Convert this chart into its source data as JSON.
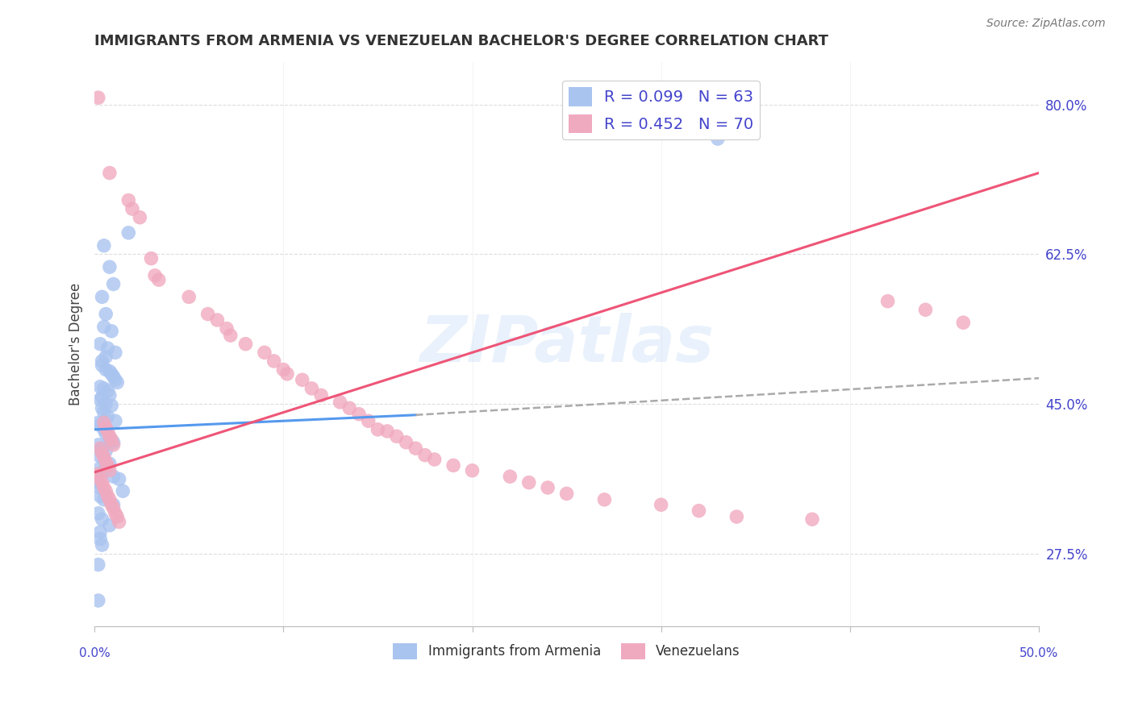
{
  "title": "IMMIGRANTS FROM ARMENIA VS VENEZUELAN BACHELOR'S DEGREE CORRELATION CHART",
  "source": "Source: ZipAtlas.com",
  "ylabel": "Bachelor's Degree",
  "ytick_labels": [
    "27.5%",
    "45.0%",
    "62.5%",
    "80.0%"
  ],
  "ytick_values": [
    0.275,
    0.45,
    0.625,
    0.8
  ],
  "legend_entries": [
    {
      "label": "R = 0.099   N = 63",
      "color": "#aac4f0"
    },
    {
      "label": "R = 0.452   N = 70",
      "color": "#f0aac0"
    }
  ],
  "legend_bottom": [
    "Immigrants from Armenia",
    "Venezuelans"
  ],
  "armenia_color": "#aac4f0",
  "venezuela_color": "#f0aac0",
  "armenia_scatter": [
    [
      0.005,
      0.635
    ],
    [
      0.018,
      0.65
    ],
    [
      0.008,
      0.61
    ],
    [
      0.01,
      0.59
    ],
    [
      0.004,
      0.575
    ],
    [
      0.006,
      0.555
    ],
    [
      0.005,
      0.54
    ],
    [
      0.009,
      0.535
    ],
    [
      0.003,
      0.52
    ],
    [
      0.007,
      0.515
    ],
    [
      0.011,
      0.51
    ],
    [
      0.006,
      0.505
    ],
    [
      0.004,
      0.5
    ],
    [
      0.004,
      0.495
    ],
    [
      0.006,
      0.49
    ],
    [
      0.008,
      0.488
    ],
    [
      0.009,
      0.485
    ],
    [
      0.01,
      0.482
    ],
    [
      0.011,
      0.478
    ],
    [
      0.012,
      0.475
    ],
    [
      0.003,
      0.47
    ],
    [
      0.005,
      0.468
    ],
    [
      0.007,
      0.465
    ],
    [
      0.008,
      0.46
    ],
    [
      0.004,
      0.458
    ],
    [
      0.003,
      0.455
    ],
    [
      0.006,
      0.45
    ],
    [
      0.009,
      0.448
    ],
    [
      0.004,
      0.445
    ],
    [
      0.005,
      0.44
    ],
    [
      0.007,
      0.435
    ],
    [
      0.011,
      0.43
    ],
    [
      0.002,
      0.428
    ],
    [
      0.003,
      0.425
    ],
    [
      0.005,
      0.42
    ],
    [
      0.006,
      0.415
    ],
    [
      0.008,
      0.41
    ],
    [
      0.01,
      0.405
    ],
    [
      0.002,
      0.402
    ],
    [
      0.004,
      0.398
    ],
    [
      0.006,
      0.395
    ],
    [
      0.002,
      0.39
    ],
    [
      0.005,
      0.385
    ],
    [
      0.008,
      0.38
    ],
    [
      0.003,
      0.375
    ],
    [
      0.004,
      0.37
    ],
    [
      0.01,
      0.365
    ],
    [
      0.013,
      0.362
    ],
    [
      0.002,
      0.358
    ],
    [
      0.003,
      0.352
    ],
    [
      0.015,
      0.348
    ],
    [
      0.003,
      0.342
    ],
    [
      0.005,
      0.338
    ],
    [
      0.01,
      0.332
    ],
    [
      0.002,
      0.322
    ],
    [
      0.004,
      0.315
    ],
    [
      0.008,
      0.308
    ],
    [
      0.003,
      0.3
    ],
    [
      0.003,
      0.292
    ],
    [
      0.004,
      0.285
    ],
    [
      0.002,
      0.262
    ],
    [
      0.002,
      0.22
    ],
    [
      0.33,
      0.76
    ]
  ],
  "venezuela_scatter": [
    [
      0.002,
      0.808
    ],
    [
      0.008,
      0.72
    ],
    [
      0.018,
      0.688
    ],
    [
      0.02,
      0.678
    ],
    [
      0.024,
      0.668
    ],
    [
      0.03,
      0.62
    ],
    [
      0.032,
      0.6
    ],
    [
      0.034,
      0.595
    ],
    [
      0.05,
      0.575
    ],
    [
      0.06,
      0.555
    ],
    [
      0.065,
      0.548
    ],
    [
      0.07,
      0.538
    ],
    [
      0.072,
      0.53
    ],
    [
      0.08,
      0.52
    ],
    [
      0.09,
      0.51
    ],
    [
      0.095,
      0.5
    ],
    [
      0.1,
      0.49
    ],
    [
      0.102,
      0.485
    ],
    [
      0.11,
      0.478
    ],
    [
      0.115,
      0.468
    ],
    [
      0.12,
      0.46
    ],
    [
      0.13,
      0.452
    ],
    [
      0.135,
      0.445
    ],
    [
      0.14,
      0.438
    ],
    [
      0.145,
      0.43
    ],
    [
      0.15,
      0.42
    ],
    [
      0.155,
      0.418
    ],
    [
      0.16,
      0.412
    ],
    [
      0.165,
      0.405
    ],
    [
      0.17,
      0.398
    ],
    [
      0.175,
      0.39
    ],
    [
      0.18,
      0.385
    ],
    [
      0.005,
      0.428
    ],
    [
      0.006,
      0.422
    ],
    [
      0.007,
      0.418
    ],
    [
      0.008,
      0.412
    ],
    [
      0.009,
      0.408
    ],
    [
      0.01,
      0.402
    ],
    [
      0.003,
      0.398
    ],
    [
      0.004,
      0.392
    ],
    [
      0.005,
      0.388
    ],
    [
      0.006,
      0.382
    ],
    [
      0.007,
      0.378
    ],
    [
      0.008,
      0.372
    ],
    [
      0.002,
      0.368
    ],
    [
      0.003,
      0.362
    ],
    [
      0.004,
      0.358
    ],
    [
      0.005,
      0.352
    ],
    [
      0.006,
      0.348
    ],
    [
      0.007,
      0.342
    ],
    [
      0.008,
      0.338
    ],
    [
      0.009,
      0.332
    ],
    [
      0.01,
      0.328
    ],
    [
      0.011,
      0.322
    ],
    [
      0.012,
      0.318
    ],
    [
      0.013,
      0.312
    ],
    [
      0.19,
      0.378
    ],
    [
      0.2,
      0.372
    ],
    [
      0.22,
      0.365
    ],
    [
      0.23,
      0.358
    ],
    [
      0.24,
      0.352
    ],
    [
      0.25,
      0.345
    ],
    [
      0.27,
      0.338
    ],
    [
      0.3,
      0.332
    ],
    [
      0.32,
      0.325
    ],
    [
      0.34,
      0.318
    ],
    [
      0.38,
      0.315
    ],
    [
      0.42,
      0.57
    ],
    [
      0.44,
      0.56
    ],
    [
      0.46,
      0.545
    ]
  ],
  "armenia_line_solid": {
    "x": [
      0.0,
      0.17
    ],
    "y": [
      0.42,
      0.437
    ]
  },
  "armenia_line_dashed": {
    "x": [
      0.17,
      0.5
    ],
    "y": [
      0.437,
      0.48
    ]
  },
  "venezuela_line": {
    "x": [
      0.0,
      0.5
    ],
    "y": [
      0.37,
      0.72
    ]
  },
  "xlim": [
    0.0,
    0.5
  ],
  "ylim": [
    0.19,
    0.85
  ],
  "watermark": "ZIPatlas",
  "background_color": "#ffffff",
  "grid_color": "#dddddd",
  "title_fontsize": 13,
  "title_color": "#333333",
  "axis_tick_color": "#4444cc"
}
